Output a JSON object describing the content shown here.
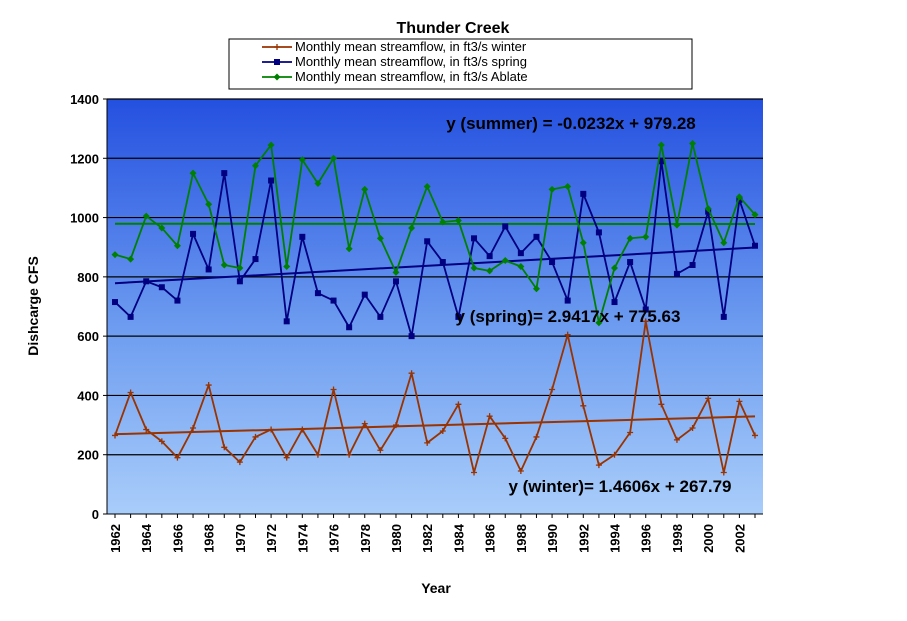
{
  "chart_data": {
    "type": "line",
    "title": "Thunder Creek",
    "xlabel": "Year",
    "ylabel": "Dishcarge CFS",
    "xlim": [
      1962,
      2003
    ],
    "ylim": [
      0,
      1400
    ],
    "y_ticks": [
      0,
      200,
      400,
      600,
      800,
      1000,
      1200,
      1400
    ],
    "x_tick_labels": [
      "1962",
      "1964",
      "1966",
      "1968",
      "1970",
      "1972",
      "1974",
      "1976",
      "1978",
      "1980",
      "1982",
      "1984",
      "1986",
      "1988",
      "1990",
      "1992",
      "1994",
      "1996",
      "1998",
      "2000",
      "2002"
    ],
    "grid": true,
    "legend_position": "top-center",
    "background": "blue-gradient",
    "x": [
      1962,
      1963,
      1964,
      1965,
      1966,
      1967,
      1968,
      1969,
      1970,
      1971,
      1972,
      1973,
      1974,
      1975,
      1976,
      1977,
      1978,
      1979,
      1980,
      1981,
      1982,
      1983,
      1984,
      1985,
      1986,
      1987,
      1988,
      1989,
      1990,
      1991,
      1992,
      1993,
      1994,
      1995,
      1996,
      1997,
      1998,
      1999,
      2000,
      2001,
      2002,
      2003
    ],
    "series": [
      {
        "name": "Monthly mean streamflow, in ft3/s winter",
        "color": "#993300",
        "marker": "plus",
        "values": [
          265,
          410,
          285,
          245,
          190,
          290,
          435,
          225,
          175,
          260,
          285,
          190,
          285,
          200,
          420,
          200,
          305,
          215,
          300,
          475,
          240,
          280,
          370,
          140,
          330,
          255,
          145,
          260,
          420,
          605,
          365,
          165,
          200,
          275,
          650,
          370,
          250,
          290,
          390,
          140,
          380,
          265
        ]
      },
      {
        "name": "Monthly mean streamflow, in ft3/s spring",
        "color": "#000080",
        "marker": "square",
        "values": [
          715,
          665,
          785,
          765,
          720,
          945,
          825,
          1150,
          785,
          860,
          1125,
          650,
          935,
          745,
          720,
          630,
          740,
          665,
          785,
          600,
          920,
          850,
          665,
          930,
          870,
          970,
          880,
          935,
          850,
          720,
          1080,
          950,
          715,
          850,
          690,
          1190,
          810,
          840,
          1020,
          665,
          1060,
          905
        ]
      },
      {
        "name": "Monthly mean streamflow, in ft3/s Ablate",
        "color": "#008000",
        "marker": "diamond",
        "values": [
          875,
          860,
          1005,
          965,
          905,
          1150,
          1045,
          840,
          830,
          1175,
          1245,
          835,
          1195,
          1115,
          1200,
          895,
          1095,
          930,
          815,
          965,
          1105,
          985,
          990,
          830,
          820,
          855,
          835,
          760,
          1095,
          1105,
          915,
          645,
          830,
          930,
          935,
          1245,
          975,
          1250,
          1030,
          915,
          1070,
          1010
        ]
      }
    ],
    "trendlines": [
      {
        "series": "winter",
        "slope": 1.4606,
        "intercept": 267.79,
        "equation": "y (winter)= 1.4606x + 267.79"
      },
      {
        "series": "spring",
        "slope": 2.9417,
        "intercept": 775.63,
        "equation": "y (spring)= 2.9417x + 775.63"
      },
      {
        "series": "summer",
        "slope": -0.0232,
        "intercept": 979.28,
        "equation": "y (summer) = -0.0232x + 979.28"
      }
    ]
  }
}
